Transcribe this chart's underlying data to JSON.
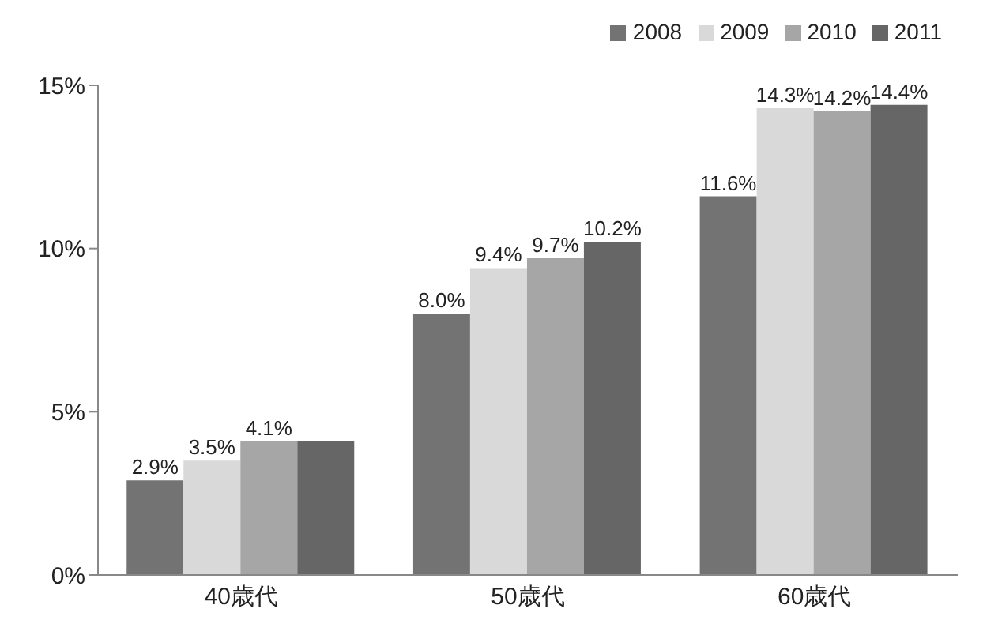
{
  "chart_data": {
    "type": "bar",
    "categories": [
      "40歳代",
      "50歳代",
      "60歳代"
    ],
    "series": [
      {
        "name": "2008",
        "color": "#737373",
        "values": [
          2.9,
          8.0,
          11.6
        ],
        "value_labels": [
          "2.9%",
          "8.0%",
          "11.6%"
        ]
      },
      {
        "name": "2009",
        "color": "#d9d9d9",
        "values": [
          3.5,
          9.4,
          14.3
        ],
        "value_labels": [
          "3.5%",
          "9.4%",
          "14.3%"
        ]
      },
      {
        "name": "2010",
        "color": "#a6a6a6",
        "values": [
          4.1,
          9.7,
          14.2
        ],
        "value_labels": [
          "4.1%",
          "9.7%",
          "14.2%"
        ]
      },
      {
        "name": "2011",
        "color": "#666666",
        "values": [
          4.1,
          10.2,
          14.4
        ],
        "value_labels": [
          null,
          "10.2%",
          "14.4%"
        ]
      }
    ],
    "ylim": [
      0,
      15
    ],
    "yticks": [
      {
        "value": 0,
        "label": "0%"
      },
      {
        "value": 5,
        "label": "5%"
      },
      {
        "value": 10,
        "label": "10%"
      },
      {
        "value": 15,
        "label": "15%"
      }
    ],
    "grid": false,
    "legend": "top right"
  }
}
